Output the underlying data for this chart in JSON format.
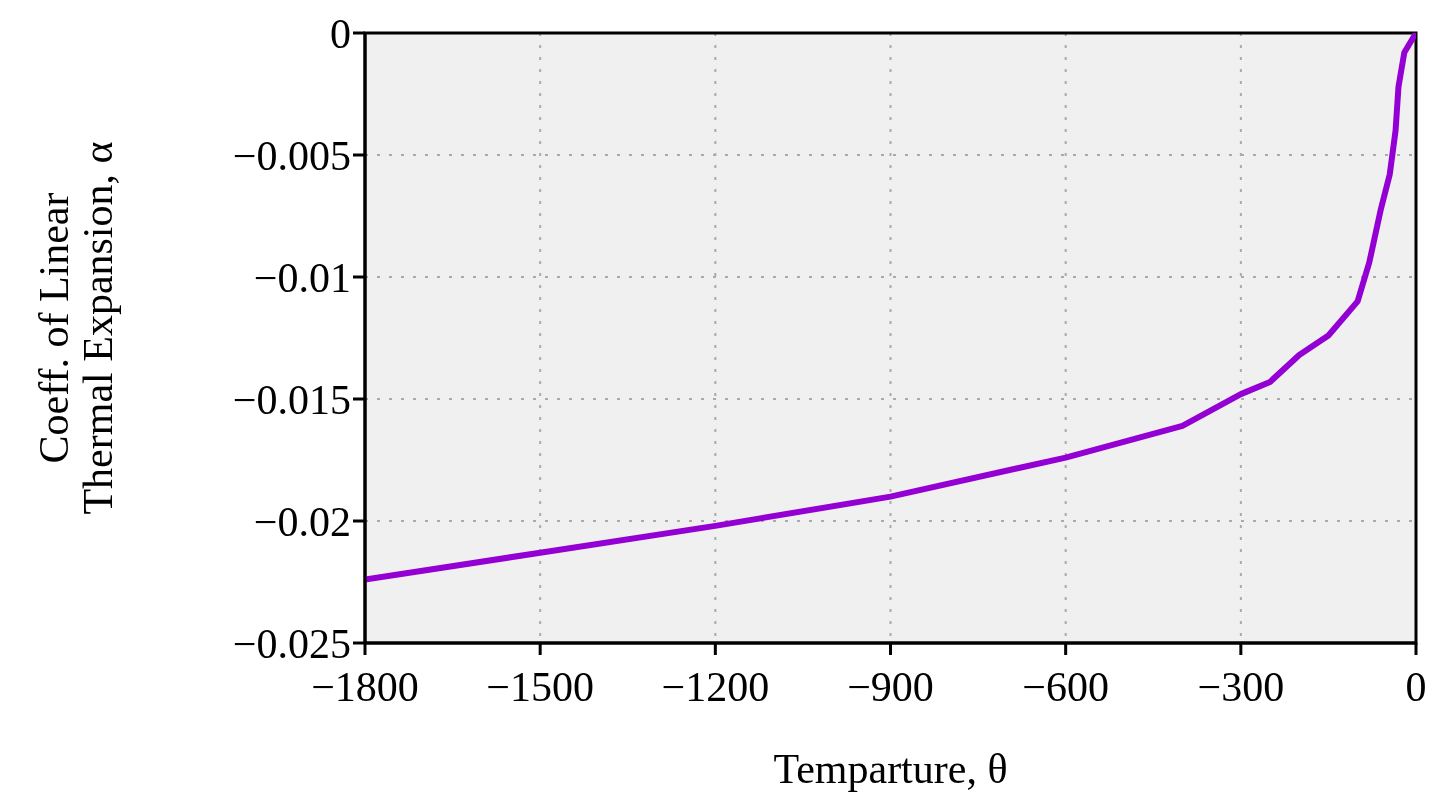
{
  "chart_data": {
    "type": "line",
    "xlabel": "Temparture, θ",
    "ylabel": "Coeff. of Linear\nThermal Expansion, α",
    "x": [
      -1800,
      -1500,
      -1200,
      -900,
      -600,
      -400,
      -300,
      -250,
      -200,
      -150,
      -100,
      -80,
      -60,
      -45,
      -35,
      -30,
      -20,
      0
    ],
    "series": [
      {
        "color": "#9400d3",
        "values": [
          -0.0224,
          -0.0213,
          -0.0202,
          -0.019,
          -0.0174,
          -0.0161,
          -0.0148,
          -0.0143,
          -0.0132,
          -0.0124,
          -0.011,
          -0.0094,
          -0.0072,
          -0.0058,
          -0.004,
          -0.0022,
          -0.0008,
          0
        ]
      }
    ],
    "xlim": [
      -1800,
      0
    ],
    "xticks": [
      -1800,
      -1500,
      -1200,
      -900,
      -600,
      -300,
      0
    ],
    "ylim": [
      -0.025,
      0
    ],
    "yticks": [
      -0.025,
      -0.02,
      -0.015,
      -0.01,
      -0.005,
      0
    ],
    "grid": true,
    "legend": false,
    "marker": "none",
    "line_style": "solid"
  }
}
